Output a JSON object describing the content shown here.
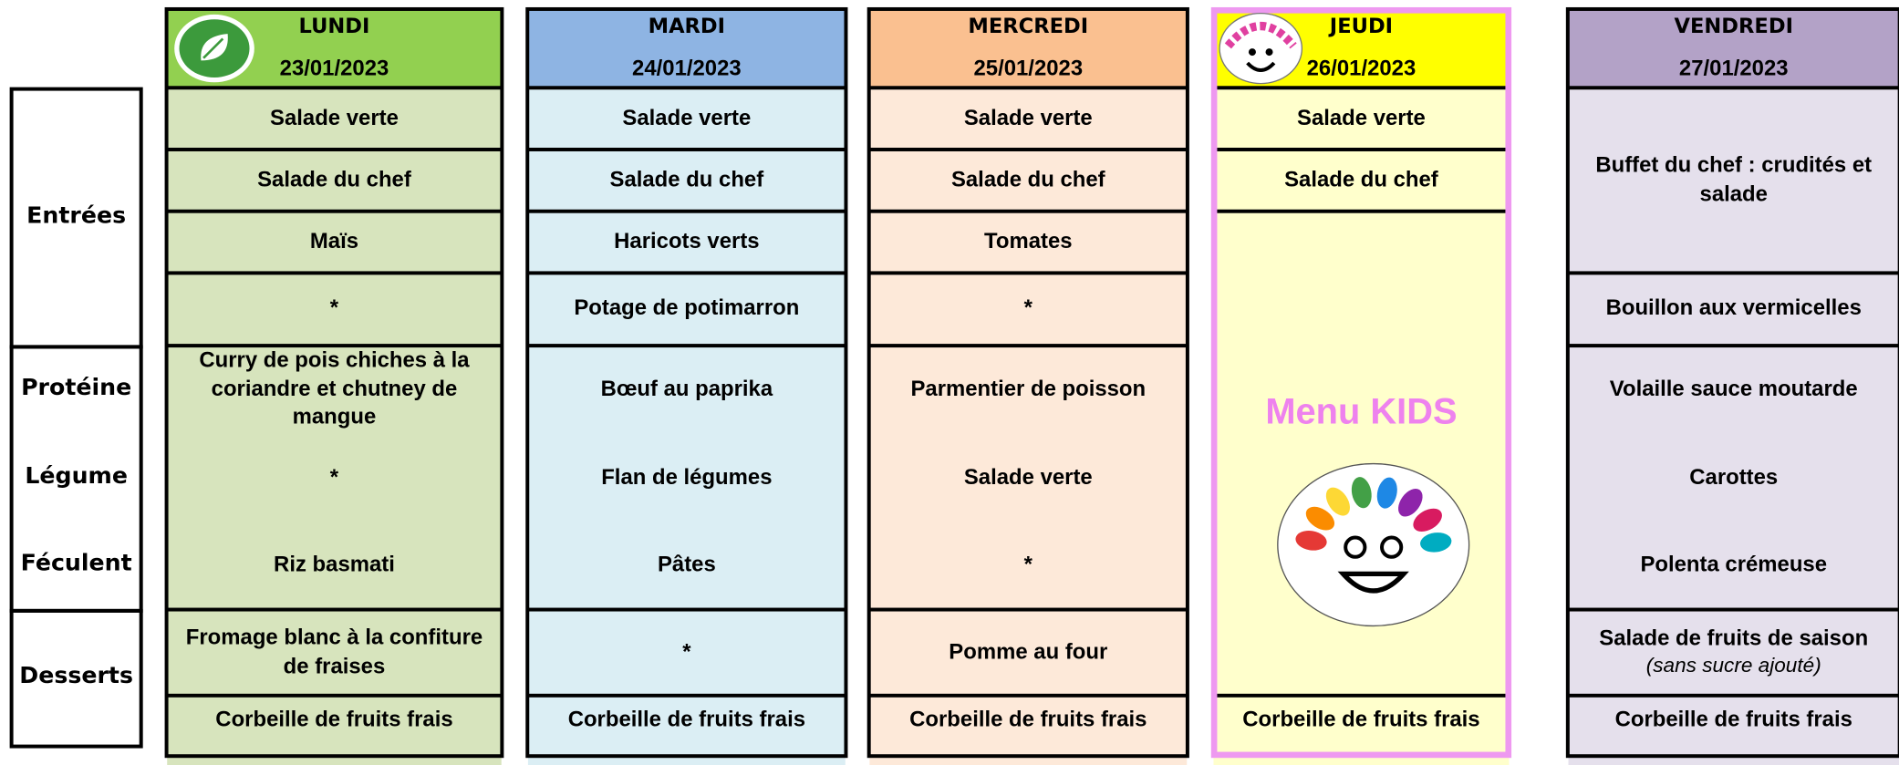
{
  "row_labels": [
    "Entrées",
    "Protéine",
    "Légume",
    "Féculent",
    "Desserts"
  ],
  "days": [
    {
      "name": "LUNDI",
      "date": "23/01/2023",
      "entrees": [
        "Salade verte",
        "Salade du chef",
        "Maïs",
        "*"
      ],
      "plat": [
        "Curry de pois chiches à la coriandre et chutney de mangue",
        "*",
        "Riz basmati"
      ],
      "desserts": [
        "Fromage blanc à la confiture de fraises",
        "Corbeille de fruits frais"
      ]
    },
    {
      "name": "MARDI",
      "date": "24/01/2023",
      "entrees": [
        "Salade verte",
        "Salade du chef",
        "Haricots verts",
        "Potage de potimarron"
      ],
      "plat": [
        "Bœuf au paprika",
        "Flan de légumes",
        "Pâtes"
      ],
      "desserts": [
        "*",
        "Corbeille de fruits frais"
      ]
    },
    {
      "name": "MERCREDI",
      "date": "25/01/2023",
      "entrees": [
        "Salade verte",
        "Salade du chef",
        "Tomates",
        "*"
      ],
      "plat": [
        "Parmentier de poisson",
        "Salade verte",
        "*"
      ],
      "desserts": [
        "Pomme au four",
        "Corbeille de fruits frais"
      ]
    },
    {
      "name": "JEUDI",
      "date": "26/01/2023",
      "entrees": [
        "Salade verte",
        "Salade du chef"
      ],
      "special": "Menu KIDS",
      "desserts": [
        "Corbeille de fruits frais"
      ]
    },
    {
      "name": "VENDREDI",
      "date": "27/01/2023",
      "entrees": [
        "Buffet du chef : crudités et salade",
        "Bouillon aux vermicelles"
      ],
      "plat": [
        "Volaille sauce moutarde",
        "Carottes",
        "Polenta crémeuse"
      ],
      "desserts": [
        "Salade de fruits de saison",
        "Corbeille de fruits frais"
      ],
      "dessert_note": "(sans sucre ajouté)"
    }
  ]
}
